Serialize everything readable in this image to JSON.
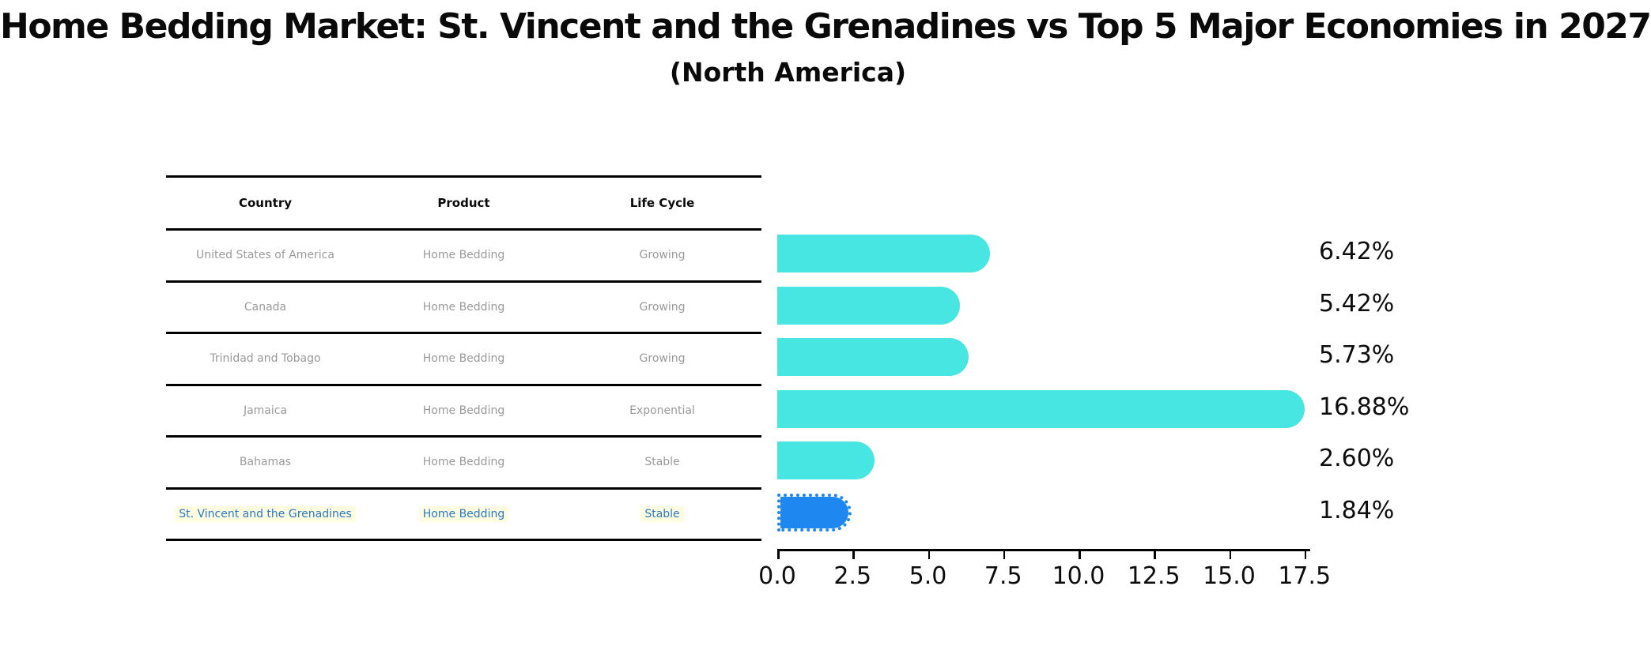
{
  "title": "Home Bedding Market: St. Vincent and the Grenadines vs Top 5 Major Economies in 2027",
  "subtitle": "(North America)",
  "table": {
    "headers": [
      "Country",
      "Product",
      "Life Cycle"
    ],
    "rows": [
      {
        "country": "United States of America",
        "product": "Home Bedding",
        "life_cycle": "Growing",
        "highlight": false
      },
      {
        "country": "Canada",
        "product": "Home Bedding",
        "life_cycle": "Growing",
        "highlight": false
      },
      {
        "country": "Trinidad and Tobago",
        "product": "Home Bedding",
        "life_cycle": "Growing",
        "highlight": false
      },
      {
        "country": "Jamaica",
        "product": "Home Bedding",
        "life_cycle": "Exponential",
        "highlight": false
      },
      {
        "country": "Bahamas",
        "product": "Home Bedding",
        "life_cycle": "Stable",
        "highlight": false
      },
      {
        "country": "St. Vincent and the Grenadines",
        "product": "Home Bedding",
        "life_cycle": "Stable",
        "highlight": true
      }
    ]
  },
  "chart_data": {
    "type": "bar",
    "orientation": "horizontal",
    "title": "Home Bedding Market: St. Vincent and the Grenadines vs Top 5 Major Economies in 2027",
    "subtitle": "(North America)",
    "categories": [
      "United States of America",
      "Canada",
      "Trinidad and Tobago",
      "Jamaica",
      "Bahamas",
      "St. Vincent and the Grenadines"
    ],
    "values": [
      6.42,
      5.42,
      5.73,
      16.88,
      2.6,
      1.84
    ],
    "value_labels": [
      "6.42%",
      "5.42%",
      "5.73%",
      "16.88%",
      "2.60%",
      "1.84%"
    ],
    "xlim": [
      0,
      17.5
    ],
    "x_tick_values": [
      0.0,
      2.5,
      5.0,
      7.5,
      10.0,
      12.5,
      15.0,
      17.5
    ],
    "x_tick_labels": [
      "0.0",
      "2.5",
      "5.0",
      "7.5",
      "10.0",
      "12.5",
      "15.0",
      "17.5"
    ],
    "grid": false,
    "legend": false,
    "bar_color": "#47E6E2",
    "highlight_bar_color": "#1E87F0",
    "highlight_index": 5,
    "highlight_text_color": "#2878C8",
    "body_text_color": "#9a9a9a"
  }
}
